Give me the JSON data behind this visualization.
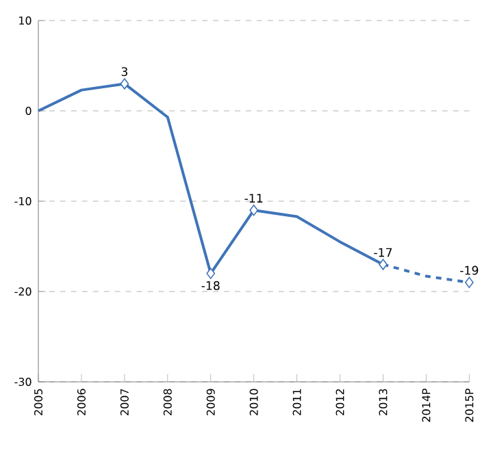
{
  "chart_data": {
    "type": "line",
    "categories": [
      "2005",
      "2006",
      "2007",
      "2008",
      "2009",
      "2010",
      "2011",
      "2012",
      "2013",
      "2014P",
      "2015P"
    ],
    "series": [
      {
        "color": "#3f74b8",
        "line_style": "solid",
        "values": [
          0,
          2.3,
          3,
          -0.7,
          -18,
          -11,
          -11.7,
          -14.5,
          -17,
          null,
          null
        ]
      },
      {
        "color": "#3f74b8",
        "line_style": "dashed",
        "values": [
          null,
          null,
          null,
          null,
          null,
          null,
          null,
          null,
          -17,
          -18.3,
          -19
        ]
      },
      {
        "type": "scatter",
        "marker": "diamond",
        "color": "#3f74b8",
        "values": [
          null,
          null,
          3,
          null,
          -18,
          -11,
          null,
          null,
          -17,
          null,
          -19
        ],
        "value_labels": [
          null,
          null,
          "3",
          null,
          "-18",
          "-11",
          null,
          null,
          "-17",
          null,
          "-19"
        ]
      }
    ],
    "ylim": [
      -30,
      10
    ],
    "yticks": [
      -30,
      -20,
      -10,
      0,
      10
    ],
    "grid": "y"
  }
}
